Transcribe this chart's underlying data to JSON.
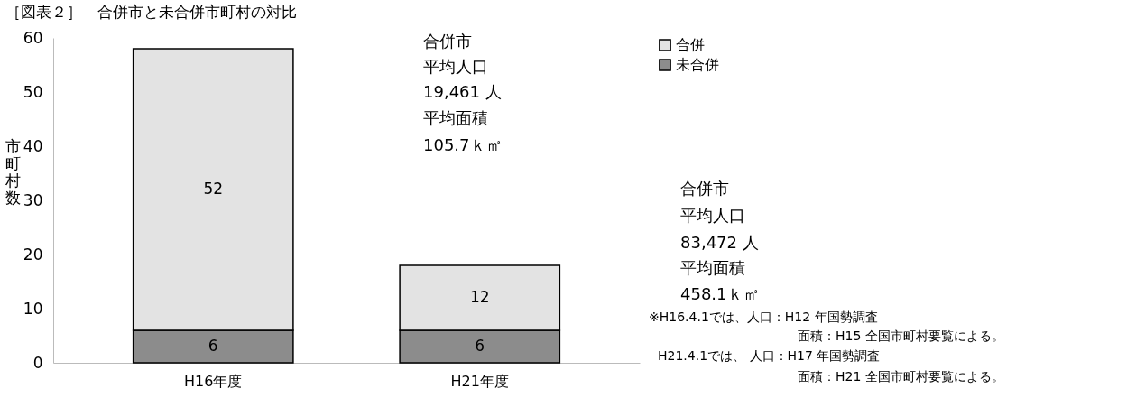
{
  "chart_data": {
    "type": "bar",
    "title": "［図表２］　合併市と未合併市町村の対比",
    "ylabel": "市町村数",
    "categories": [
      "H16年度",
      "H21年度"
    ],
    "series": [
      {
        "name": "未合併",
        "color": "#8c8c8c",
        "values": [
          6,
          6
        ]
      },
      {
        "name": "合併",
        "color": "#e3e3e3",
        "values": [
          52,
          12
        ]
      }
    ],
    "stacked": true,
    "data_labels": true,
    "ylim": [
      0,
      60
    ],
    "yticks": [
      0,
      10,
      20,
      30,
      40,
      50,
      60
    ],
    "grid": false,
    "legend": "top right",
    "annotations": [
      "合併市",
      "平均人口",
      "19,461 人",
      "平均面積",
      "105.7ｋ㎡",
      "合併市",
      "平均人口",
      "83,472 人",
      "平均面積",
      "458.1ｋ㎡",
      "※H16.4.1では、人口：H12 年国勢調査",
      "面積：H15 全国市町村要覧による。",
      "H21.4.1では、 人口：H17 年国勢調査",
      "面積：H21 全国市町村要覧による。"
    ]
  }
}
